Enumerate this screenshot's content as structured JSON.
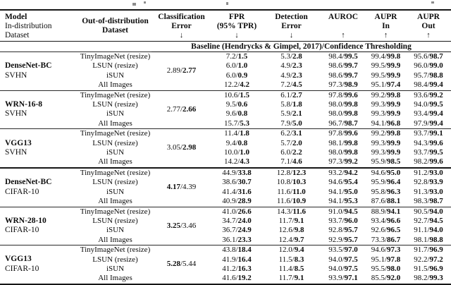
{
  "table": {
    "header": {
      "model": {
        "line1": "Model",
        "line2": "In-distribution",
        "line3": "Dataset"
      },
      "ood": {
        "line1": "Out-of-distribution",
        "line2": "Dataset"
      },
      "metrics": [
        {
          "line1": "Classification",
          "line2": "Error",
          "arrow": "↓"
        },
        {
          "line1": "FPR",
          "line2": "(95% TPR)",
          "arrow": "↓"
        },
        {
          "line1": "Detection",
          "line2": "Error",
          "arrow": "↓"
        },
        {
          "line1": "AUROC",
          "line2": "",
          "arrow": "↑"
        },
        {
          "line1": "AUPR",
          "line2": "In",
          "arrow": "↑"
        },
        {
          "line1": "AUPR",
          "line2": "Out",
          "arrow": "↑"
        }
      ]
    },
    "span_header": "Baseline (Hendrycks & Gimpel, 2017)/Confidence Thresholding",
    "blocks": [
      {
        "model": "DenseNet-BC",
        "dataset": "SVHN",
        "section_start": false,
        "clf_error": {
          "first": "2.89",
          "second": "2.77",
          "bold": "second"
        },
        "rows": [
          {
            "ood": "TinyImageNet (resize)",
            "cells": [
              [
                "7.2",
                "1.5"
              ],
              [
                "5.3",
                "2.8"
              ],
              [
                "98.4",
                "99.5"
              ],
              [
                "99.4",
                "99.8"
              ],
              [
                "95.6",
                "98.7"
              ]
            ]
          },
          {
            "ood": "LSUN (resize)",
            "cells": [
              [
                "6.0",
                "1.0"
              ],
              [
                "4.9",
                "2.3"
              ],
              [
                "98.6",
                "99.7"
              ],
              [
                "99.5",
                "99.9"
              ],
              [
                "96.0",
                "99.0"
              ]
            ]
          },
          {
            "ood": "iSUN",
            "cells": [
              [
                "6.0",
                "0.9"
              ],
              [
                "4.9",
                "2.3"
              ],
              [
                "98.6",
                "99.7"
              ],
              [
                "99.5",
                "99.9"
              ],
              [
                "95.7",
                "98.8"
              ]
            ]
          },
          {
            "ood": "All Images",
            "cells": [
              [
                "12.2",
                "4.2"
              ],
              [
                "7.2",
                "4.5"
              ],
              [
                "97.3",
                "98.9"
              ],
              [
                "95.1",
                "97.4"
              ],
              [
                "98.4",
                "99.4"
              ]
            ]
          }
        ]
      },
      {
        "model": "WRN-16-8",
        "dataset": "SVHN",
        "section_start": false,
        "clf_error": {
          "first": "2.77",
          "second": "2.66",
          "bold": "second"
        },
        "rows": [
          {
            "ood": "TinyImageNet (resize)",
            "cells": [
              [
                "10.6",
                "1.5"
              ],
              [
                "6.1",
                "2.7"
              ],
              [
                "97.8",
                "99.6"
              ],
              [
                "99.2",
                "99.8"
              ],
              [
                "93.6",
                "99.2"
              ]
            ]
          },
          {
            "ood": "LSUN (resize)",
            "cells": [
              [
                "9.5",
                "0.6"
              ],
              [
                "5.8",
                "1.8"
              ],
              [
                "98.0",
                "99.8"
              ],
              [
                "99.3",
                "99.9"
              ],
              [
                "94.0",
                "99.5"
              ]
            ]
          },
          {
            "ood": "iSUN",
            "cells": [
              [
                "9.6",
                "0.8"
              ],
              [
                "5.9",
                "2.1"
              ],
              [
                "98.0",
                "99.8"
              ],
              [
                "99.3",
                "99.9"
              ],
              [
                "93.4",
                "99.4"
              ]
            ]
          },
          {
            "ood": "All Images",
            "cells": [
              [
                "15.7",
                "5.3"
              ],
              [
                "7.9",
                "5.0"
              ],
              [
                "96.7",
                "98.7"
              ],
              [
                "94.1",
                "96.8"
              ],
              [
                "97.9",
                "99.4"
              ]
            ]
          }
        ]
      },
      {
        "model": "VGG13",
        "dataset": "SVHN",
        "section_start": false,
        "clf_error": {
          "first": "3.05",
          "second": "2.98",
          "bold": "second"
        },
        "rows": [
          {
            "ood": "TinyImageNet (resize)",
            "cells": [
              [
                "11.4",
                "1.8"
              ],
              [
                "6.2",
                "3.1"
              ],
              [
                "97.8",
                "99.6"
              ],
              [
                "99.2",
                "99.8"
              ],
              [
                "93.7",
                "99.1"
              ]
            ]
          },
          {
            "ood": "LSUN (resize)",
            "cells": [
              [
                "9.4",
                "0.8"
              ],
              [
                "5.7",
                "2.0"
              ],
              [
                "98.1",
                "99.8"
              ],
              [
                "99.3",
                "99.9"
              ],
              [
                "94.3",
                "99.6"
              ]
            ]
          },
          {
            "ood": "iSUN",
            "cells": [
              [
                "10.0",
                "1.0"
              ],
              [
                "6.0",
                "2.2"
              ],
              [
                "98.0",
                "99.8"
              ],
              [
                "99.3",
                "99.9"
              ],
              [
                "93.7",
                "99.5"
              ]
            ]
          },
          {
            "ood": "All Images",
            "cells": [
              [
                "14.2",
                "4.3"
              ],
              [
                "7.1",
                "4.6"
              ],
              [
                "97.3",
                "99.2"
              ],
              [
                "95.9",
                "98.5"
              ],
              [
                "98.2",
                "99.6"
              ]
            ]
          }
        ]
      },
      {
        "model": "DenseNet-BC",
        "dataset": "CIFAR-10",
        "section_start": true,
        "clf_error": {
          "first": "4.17",
          "second": "4.39",
          "bold": "first"
        },
        "rows": [
          {
            "ood": "TinyImageNet (resize)",
            "cells": [
              [
                "44.9",
                "33.8"
              ],
              [
                "12.8",
                "12.3"
              ],
              [
                "93.2",
                "94.2"
              ],
              [
                "94.6",
                "95.0"
              ],
              [
                "91.2",
                "93.0"
              ]
            ]
          },
          {
            "ood": "LSUN (resize)",
            "cells": [
              [
                "38.6",
                "30.7"
              ],
              [
                "10.8",
                "10.3"
              ],
              [
                "94.6",
                "95.4"
              ],
              [
                "95.9",
                "96.4"
              ],
              [
                "92.8",
                "93.9"
              ]
            ]
          },
          {
            "ood": "iSUN",
            "cells": [
              [
                "41.4",
                "31.6"
              ],
              [
                "11.6",
                "11.0"
              ],
              [
                "94.1",
                "95.0"
              ],
              [
                "95.8",
                "96.3"
              ],
              [
                "91.3",
                "93.0"
              ]
            ]
          },
          {
            "ood": "All Images",
            "cells": [
              [
                "40.9",
                "28.9"
              ],
              [
                "11.6",
                "10.9"
              ],
              [
                "94.1",
                "95.3"
              ],
              [
                "87.6",
                "88.1"
              ],
              [
                "98.3",
                "98.7"
              ]
            ]
          }
        ]
      },
      {
        "model": "WRN-28-10",
        "dataset": "CIFAR-10",
        "section_start": false,
        "clf_error": {
          "first": "3.25",
          "second": "3.46",
          "bold": "first"
        },
        "rows": [
          {
            "ood": "TinyImageNet (resize)",
            "cells": [
              [
                "41.0",
                "26.6"
              ],
              [
                "14.3",
                "11.6"
              ],
              [
                "91.0",
                "94.5"
              ],
              [
                "88.9",
                "94.1"
              ],
              [
                "90.5",
                "94.0"
              ]
            ]
          },
          {
            "ood": "LSUN (resize)",
            "cells": [
              [
                "34.7",
                "24.0"
              ],
              [
                "11.7",
                "9.1"
              ],
              [
                "93.7",
                "96.0"
              ],
              [
                "93.4",
                "96.6"
              ],
              [
                "92.7",
                "94.5"
              ]
            ]
          },
          {
            "ood": "iSUN",
            "cells": [
              [
                "36.7",
                "24.9"
              ],
              [
                "12.6",
                "9.8"
              ],
              [
                "92.8",
                "95.7"
              ],
              [
                "92.6",
                "96.5"
              ],
              [
                "91.1",
                "94.0"
              ]
            ]
          },
          {
            "ood": "All Images",
            "cells": [
              [
                "36.1",
                "23.3"
              ],
              [
                "12.4",
                "9.7"
              ],
              [
                "92.9",
                "95.7"
              ],
              [
                "73.3",
                "86.7"
              ],
              [
                "98.1",
                "98.8"
              ]
            ]
          }
        ]
      },
      {
        "model": "VGG13",
        "dataset": "CIFAR-10",
        "section_start": false,
        "clf_error": {
          "first": "5.28",
          "second": "5.44",
          "bold": "first"
        },
        "rows": [
          {
            "ood": "TinyImageNet (resize)",
            "cells": [
              [
                "43.8",
                "18.4"
              ],
              [
                "12.0",
                "9.4"
              ],
              [
                "93.5",
                "97.0"
              ],
              [
                "94.6",
                "97.3"
              ],
              [
                "91.7",
                "96.9"
              ]
            ]
          },
          {
            "ood": "LSUN (resize)",
            "cells": [
              [
                "41.9",
                "16.4"
              ],
              [
                "11.5",
                "8.3"
              ],
              [
                "94.0",
                "97.5"
              ],
              [
                "95.1",
                "97.8"
              ],
              [
                "92.2",
                "97.2"
              ]
            ]
          },
          {
            "ood": "iSUN",
            "cells": [
              [
                "41.2",
                "16.3"
              ],
              [
                "11.4",
                "8.5"
              ],
              [
                "94.0",
                "97.5"
              ],
              [
                "95.5",
                "98.0"
              ],
              [
                "91.5",
                "96.9"
              ]
            ]
          },
          {
            "ood": "All Images",
            "cells": [
              [
                "41.6",
                "19.2"
              ],
              [
                "11.7",
                "9.1"
              ],
              [
                "93.9",
                "97.1"
              ],
              [
                "85.5",
                "92.0"
              ],
              [
                "98.2",
                "99.3"
              ]
            ]
          }
        ]
      }
    ]
  }
}
